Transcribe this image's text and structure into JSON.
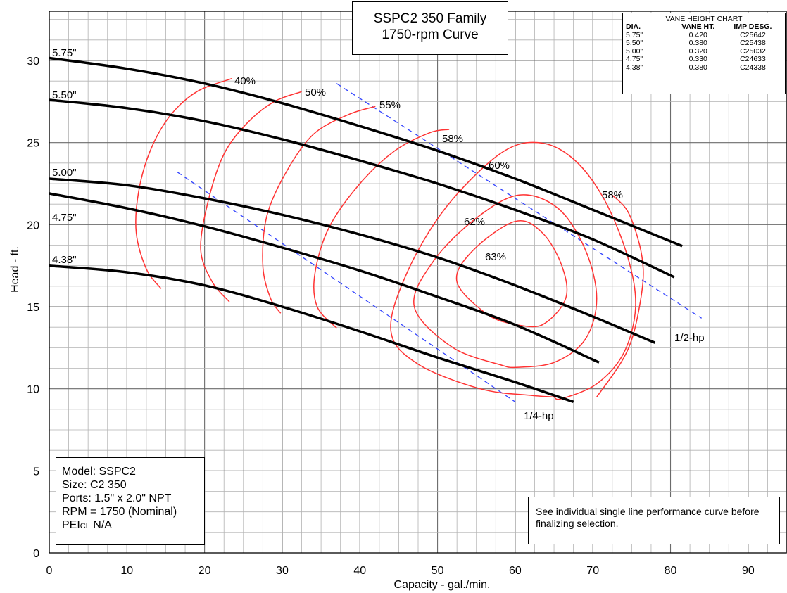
{
  "chart_data": {
    "type": "line",
    "title_lines": [
      "SSPC2 350 Family",
      "1750-rpm Curve"
    ],
    "xlabel": "Capacity - gal./min.",
    "ylabel": "Head - ft.",
    "xlim": [
      0,
      95
    ],
    "ylim": [
      0,
      33
    ],
    "x_ticks": [
      0,
      10,
      20,
      30,
      40,
      50,
      60,
      70,
      80,
      90
    ],
    "y_ticks": [
      0,
      5,
      10,
      15,
      20,
      25,
      30
    ],
    "grid": true,
    "series": [
      {
        "name": "5.75\"",
        "x": [
          0,
          10,
          20,
          30,
          40,
          50,
          60,
          70,
          81.5
        ],
        "y": [
          30.15,
          29.5,
          28.6,
          27.4,
          26.0,
          24.5,
          22.8,
          20.9,
          18.7
        ]
      },
      {
        "name": "5.50\"",
        "x": [
          0,
          10,
          20,
          30,
          40,
          50,
          60,
          70,
          80.5
        ],
        "y": [
          27.6,
          27.1,
          26.3,
          25.2,
          23.9,
          22.5,
          20.9,
          19.1,
          16.8
        ]
      },
      {
        "name": "5.00\"",
        "x": [
          0,
          10,
          20,
          30,
          40,
          50,
          60,
          70,
          78
        ],
        "y": [
          22.8,
          22.4,
          21.6,
          20.6,
          19.4,
          18.0,
          16.3,
          14.4,
          12.8
        ]
      },
      {
        "name": "4.75\"",
        "x": [
          0,
          10,
          20,
          30,
          40,
          50,
          60,
          70.8
        ],
        "y": [
          21.9,
          21.0,
          19.9,
          18.6,
          17.2,
          15.6,
          13.9,
          11.6
        ]
      },
      {
        "name": "4.38\"",
        "x": [
          0,
          10,
          20,
          30,
          40,
          50,
          60,
          67.5
        ],
        "y": [
          17.5,
          17.1,
          16.3,
          15.0,
          13.5,
          11.9,
          10.4,
          9.2
        ]
      }
    ],
    "efficiency_curves": [
      {
        "label": "40%",
        "x": [
          14.4,
          12.5,
          11.2,
          11.5,
          13.0,
          15.5,
          19.0,
          23.5
        ],
        "y": [
          16.1,
          17.3,
          19.5,
          22.0,
          24.5,
          26.6,
          28.1,
          28.9
        ]
      },
      {
        "label": "50%",
        "x": [
          23.2,
          21.0,
          19.5,
          20.5,
          22.5,
          25.5,
          29.0,
          32.5
        ],
        "y": [
          15.3,
          16.5,
          18.5,
          21.5,
          24.3,
          26.2,
          27.5,
          28.1
        ]
      },
      {
        "label": "55%",
        "x": [
          29.8,
          28.5,
          27.5,
          28.0,
          30.5,
          34.0,
          38.5,
          42.0
        ],
        "y": [
          14.6,
          15.5,
          17.5,
          20.5,
          23.2,
          25.5,
          26.7,
          27.2
        ]
      },
      {
        "label": "58%",
        "x": [
          37.0,
          34.5,
          34.2,
          36.0,
          40.0,
          44.5,
          49.0,
          51.5
        ],
        "y": [
          13.7,
          15.0,
          17.0,
          19.8,
          22.5,
          24.5,
          25.6,
          25.8
        ]
      },
      {
        "label": "60%",
        "x": [
          65.0,
          62.0,
          55.5,
          47.5,
          44.0,
          46.0,
          51.0,
          58.0,
          63.0,
          67.5,
          71.5,
          74.5,
          75.5,
          74.0,
          70.5,
          66.0,
          65.0
        ],
        "y": [
          9.5,
          9.6,
          10.0,
          11.5,
          13.5,
          17.0,
          21.0,
          24.3,
          25.0,
          24.0,
          21.5,
          18.0,
          15.0,
          12.2,
          10.3,
          9.4,
          9.5
        ]
      },
      {
        "label": "62%",
        "x": [
          58.5,
          52.0,
          47.0,
          49.5,
          55.0,
          60.5,
          65.5,
          69.0,
          70.5,
          69.0,
          65.0,
          60.0,
          58.5
        ],
        "y": [
          11.4,
          12.5,
          15.0,
          17.8,
          20.4,
          21.8,
          21.0,
          18.5,
          15.5,
          13.0,
          11.6,
          11.3,
          11.4
        ]
      },
      {
        "label": "63%",
        "x": [
          60.0,
          56.5,
          52.5,
          54.5,
          60.0,
          63.5,
          66.0,
          66.5,
          63.5,
          60.0
        ],
        "y": [
          13.9,
          14.5,
          16.5,
          18.4,
          20.2,
          19.5,
          17.5,
          15.5,
          13.9,
          13.9
        ]
      },
      {
        "label": "58%",
        "x": [
          72.5,
          74.5,
          76.0,
          76.5,
          76.0,
          75.0,
          73.5,
          70.5
        ],
        "y": [
          21.8,
          20.8,
          18.8,
          17.0,
          15.0,
          13.0,
          11.5,
          9.5
        ]
      }
    ],
    "hp_lines": [
      {
        "label": "1/2-hp",
        "x": [
          37,
          84
        ],
        "y": [
          28.6,
          14.3
        ]
      },
      {
        "label": "1/4-hp",
        "x": [
          16.5,
          60
        ],
        "y": [
          23.2,
          9.2
        ]
      }
    ],
    "diameter_labels": [
      "5.75\"",
      "5.50\"",
      "5.00\"",
      "4.75\"",
      "4.38\""
    ],
    "colors": {
      "head": "#000000",
      "efficiency": "#ff3333",
      "hp": "#3344ff"
    }
  },
  "vane_chart": {
    "title": "VANE HEIGHT CHART",
    "headers": [
      "DIA.",
      "VANE HT.",
      "IMP DESG."
    ],
    "rows": [
      [
        "5.75\"",
        "0.420",
        "C25642"
      ],
      [
        "5.50\"",
        "0.380",
        "C25438"
      ],
      [
        "5.00\"",
        "0.320",
        "C25032"
      ],
      [
        "4.75\"",
        "0.330",
        "C24633"
      ],
      [
        "4.38\"",
        "0.380",
        "C24338"
      ]
    ]
  },
  "info": {
    "model": "Model: SSPC2",
    "size": "Size: C2 350",
    "ports": "Ports: 1.5\" x 2.0\" NPT",
    "rpm": "RPM = 1750 (Nominal)",
    "pei_prefix": "PEI",
    "pei_sub": "CL",
    "pei_value": " N/A"
  },
  "note": "See individual single line performance curve before finalizing selection."
}
